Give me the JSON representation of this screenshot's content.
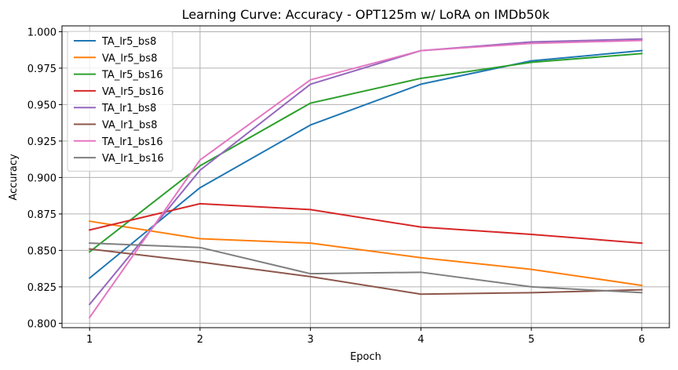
{
  "chart_data": {
    "type": "line",
    "title": "Learning Curve: Accuracy - OPT125m w/ LoRA on IMDb50k",
    "xlabel": "Epoch",
    "ylabel": "Accuracy",
    "x": [
      1,
      2,
      3,
      4,
      5,
      6
    ],
    "xticks": [
      "1",
      "2",
      "3",
      "4",
      "5",
      "6"
    ],
    "xlim": [
      0.75,
      6.25
    ],
    "ylim": [
      0.797,
      1.004
    ],
    "yticks": [
      "0.800",
      "0.825",
      "0.850",
      "0.875",
      "0.900",
      "0.925",
      "0.950",
      "0.975",
      "1.000"
    ],
    "grid": true,
    "legend_position": "top-left",
    "series": [
      {
        "name": "TA_lr5_bs8",
        "color": "#1f77b4",
        "values": [
          0.831,
          0.893,
          0.936,
          0.964,
          0.98,
          0.987
        ]
      },
      {
        "name": "VA_lr5_bs8",
        "color": "#ff7f0e",
        "values": [
          0.87,
          0.858,
          0.855,
          0.845,
          0.837,
          0.826
        ]
      },
      {
        "name": "TA_lr5_bs16",
        "color": "#2ca02c",
        "values": [
          0.849,
          0.908,
          0.951,
          0.968,
          0.979,
          0.985
        ]
      },
      {
        "name": "VA_lr5_bs16",
        "color": "#d62728",
        "values": [
          0.864,
          0.882,
          0.878,
          0.866,
          0.861,
          0.855
        ]
      },
      {
        "name": "TA_lr1_bs8",
        "color": "#9467bd",
        "values": [
          0.813,
          0.905,
          0.964,
          0.987,
          0.993,
          0.995
        ]
      },
      {
        "name": "VA_lr1_bs8",
        "color": "#8c564b",
        "values": [
          0.851,
          0.842,
          0.832,
          0.82,
          0.821,
          0.823
        ]
      },
      {
        "name": "TA_lr1_bs16",
        "color": "#e377c2",
        "values": [
          0.804,
          0.912,
          0.967,
          0.987,
          0.992,
          0.994
        ]
      },
      {
        "name": "VA_lr1_bs16",
        "color": "#7f7f7f",
        "values": [
          0.855,
          0.852,
          0.834,
          0.835,
          0.825,
          0.821
        ]
      }
    ]
  }
}
